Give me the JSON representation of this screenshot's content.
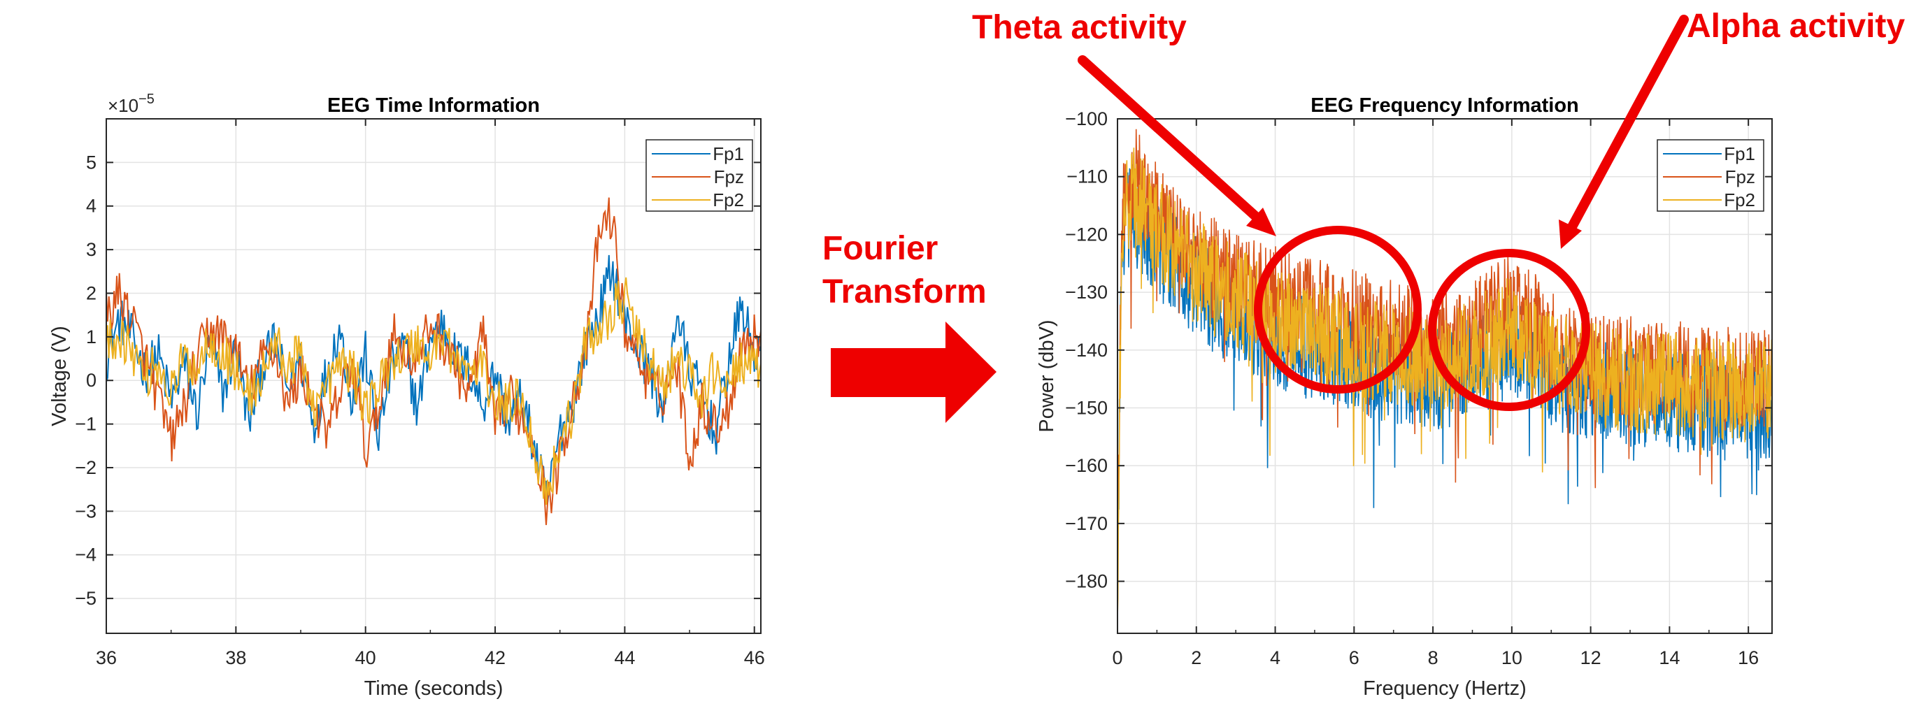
{
  "annotations": {
    "theta": "Theta activity",
    "alpha": "Alpha activity",
    "transform_line1": "Fourier",
    "transform_line2": "Transform"
  },
  "colors": {
    "Fp1": "#0072BD",
    "Fpz": "#D95319",
    "Fp2": "#EDB120",
    "annotation": "#EE0000"
  },
  "chart_data": [
    {
      "type": "line",
      "title": "EEG Time Information",
      "xlabel": "Time (seconds)",
      "ylabel": "Voltage (V)",
      "exponent_label": "×10",
      "exponent_power": "-5",
      "xlim": [
        36,
        46.1
      ],
      "ylim": [
        -5.8,
        6
      ],
      "xticks": [
        36,
        38,
        40,
        42,
        44,
        46
      ],
      "yticks": [
        -5,
        -4,
        -3,
        -2,
        -1,
        0,
        1,
        2,
        3,
        4,
        5
      ],
      "grid": true,
      "legend_position": "top-right",
      "x": [
        36.0,
        36.2,
        36.4,
        36.6,
        36.8,
        37.0,
        37.2,
        37.4,
        37.6,
        37.8,
        38.0,
        38.2,
        38.4,
        38.6,
        38.8,
        39.0,
        39.2,
        39.4,
        39.6,
        39.8,
        40.0,
        40.2,
        40.4,
        40.6,
        40.8,
        41.0,
        41.2,
        41.4,
        41.6,
        41.8,
        42.0,
        42.2,
        42.4,
        42.6,
        42.8,
        43.0,
        43.2,
        43.4,
        43.6,
        43.8,
        44.0,
        44.2,
        44.4,
        44.6,
        44.8,
        45.0,
        45.2,
        45.4,
        45.6,
        45.8,
        46.0
      ],
      "series": [
        {
          "name": "Fp1",
          "values": [
            0.5,
            1.4,
            1.0,
            0.2,
            0.6,
            -0.5,
            0.4,
            -0.8,
            0.9,
            -0.3,
            0.8,
            -1.0,
            0.3,
            0.9,
            -0.2,
            0.5,
            -1.1,
            0.2,
            1.2,
            -0.5,
            0.6,
            -1.3,
            0.4,
            0.8,
            -0.7,
            1.0,
            1.3,
            0.5,
            0.3,
            -0.6,
            0.2,
            -1.0,
            -0.4,
            -1.5,
            -2.8,
            -1.2,
            -0.5,
            0.8,
            1.5,
            2.6,
            1.4,
            0.7,
            0.2,
            -0.8,
            1.6,
            0.2,
            -0.3,
            -1.3,
            0.4,
            1.7,
            0.6
          ]
        },
        {
          "name": "Fpz",
          "values": [
            1.5,
            2.0,
            1.4,
            0.5,
            -0.4,
            -1.4,
            -0.6,
            0.5,
            1.2,
            1.0,
            0.7,
            -0.3,
            0.5,
            0.8,
            -0.6,
            0.2,
            -0.5,
            -1.3,
            -0.3,
            0.4,
            -1.6,
            -0.7,
            1.1,
            0.7,
            0.4,
            1.3,
            0.9,
            0.3,
            -0.4,
            1.2,
            -1.1,
            -0.3,
            -0.8,
            -1.4,
            -2.9,
            -1.8,
            -0.4,
            0.6,
            3.4,
            3.8,
            1.2,
            0.6,
            -0.2,
            -0.3,
            0.4,
            -1.8,
            -0.5,
            -1.1,
            -0.6,
            0.8,
            1.0
          ]
        },
        {
          "name": "Fp2",
          "values": [
            0.8,
            1.1,
            0.7,
            0.1,
            0.4,
            -0.3,
            0.5,
            0.3,
            1.0,
            0.6,
            0.2,
            -0.4,
            0.1,
            0.9,
            0.3,
            0.6,
            -0.6,
            -0.2,
            0.4,
            0.2,
            -0.6,
            -0.2,
            0.5,
            0.6,
            0.9,
            0.5,
            1.1,
            0.4,
            0.2,
            0.3,
            -0.5,
            -0.6,
            -0.3,
            -1.6,
            -2.6,
            -1.4,
            -0.7,
            0.9,
            1.2,
            1.6,
            1.9,
            1.0,
            0.4,
            -0.2,
            0.5,
            0.1,
            -0.5,
            0.3,
            -0.2,
            0.5,
            0.2
          ]
        }
      ]
    },
    {
      "type": "line",
      "title": "EEG Frequency Information",
      "xlabel": "Frequency (Hertz)",
      "ylabel": "Power (dbV)",
      "xlim": [
        0,
        16.6
      ],
      "ylim": [
        -189,
        -100
      ],
      "xticks": [
        0,
        2,
        4,
        6,
        8,
        10,
        12,
        14,
        16
      ],
      "yticks": [
        -100,
        -110,
        -120,
        -130,
        -140,
        -150,
        -160,
        -170,
        -180
      ],
      "grid": true,
      "legend_position": "top-right",
      "x": [
        0,
        0.1,
        0.2,
        0.4,
        0.6,
        0.8,
        1.0,
        1.5,
        2.0,
        2.5,
        3.0,
        3.5,
        4.0,
        4.5,
        5.0,
        5.5,
        6.0,
        6.5,
        7.0,
        7.5,
        8.0,
        8.5,
        9.0,
        9.5,
        10.0,
        10.5,
        11.0,
        11.5,
        12.0,
        12.5,
        13.0,
        13.5,
        14.0,
        14.5,
        15.0,
        15.5,
        16.0,
        16.6
      ],
      "series": [
        {
          "name": "Fp1",
          "values": [
            -180,
            -125,
            -118,
            -116,
            -118,
            -120,
            -122,
            -126,
            -129,
            -132,
            -134,
            -136,
            -138,
            -139,
            -140,
            -141,
            -142,
            -143,
            -144,
            -144,
            -145,
            -145,
            -143,
            -141,
            -139,
            -142,
            -145,
            -146,
            -147,
            -147,
            -148,
            -148,
            -149,
            -149,
            -149,
            -149,
            -150,
            -150
          ]
        },
        {
          "name": "Fpz",
          "values": [
            -178,
            -120,
            -112,
            -110,
            -112,
            -114,
            -116,
            -120,
            -123,
            -126,
            -128,
            -130,
            -131,
            -132,
            -133,
            -134,
            -135,
            -136,
            -137,
            -138,
            -139,
            -139,
            -137,
            -134,
            -132,
            -135,
            -139,
            -141,
            -142,
            -143,
            -143,
            -144,
            -144,
            -144,
            -145,
            -145,
            -145,
            -145
          ]
        },
        {
          "name": "Fp2",
          "values": [
            -182,
            -123,
            -115,
            -113,
            -115,
            -117,
            -119,
            -123,
            -126,
            -129,
            -131,
            -133,
            -135,
            -136,
            -137,
            -138,
            -139,
            -140,
            -141,
            -141,
            -142,
            -142,
            -140,
            -138,
            -136,
            -139,
            -142,
            -143,
            -144,
            -145,
            -145,
            -146,
            -146,
            -146,
            -147,
            -147,
            -147,
            -147
          ]
        }
      ]
    }
  ]
}
